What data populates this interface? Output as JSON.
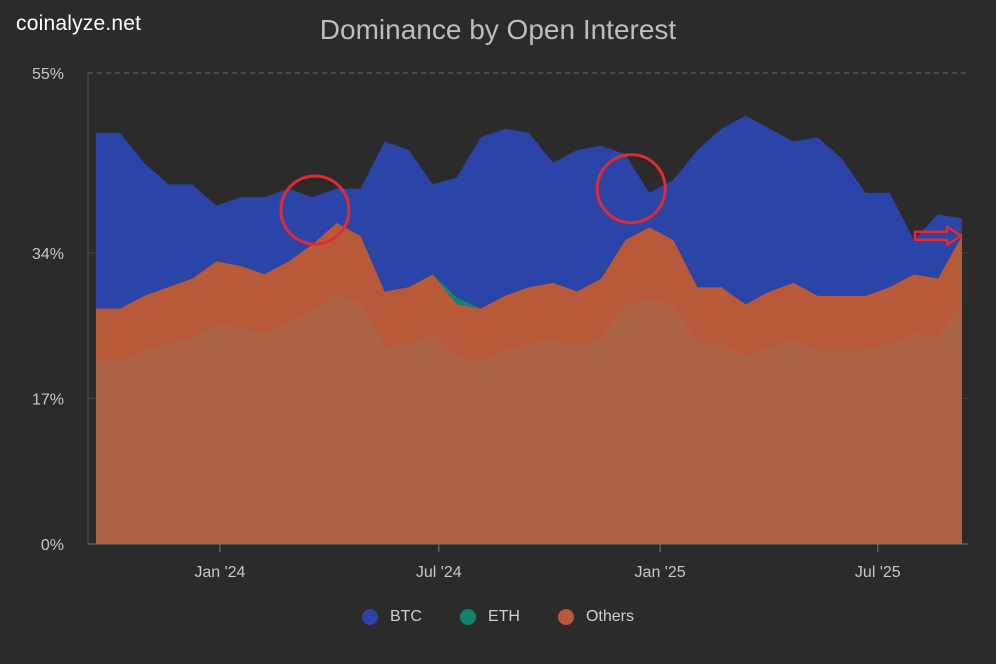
{
  "brand": "coinalyze.net",
  "chart_data": {
    "type": "area",
    "stacked": true,
    "title": "Dominance by Open Interest",
    "xlabel": "",
    "ylabel": "",
    "y_ticks": [
      "0%",
      "17%",
      "34%",
      "55%"
    ],
    "y_tick_values": [
      0,
      17,
      34,
      55
    ],
    "ylim": [
      0,
      55
    ],
    "x_ticks": [
      {
        "label": "Jan '24",
        "date": "2024-01-01"
      },
      {
        "label": "Jul '24",
        "date": "2024-07-01"
      },
      {
        "label": "Jan '25",
        "date": "2025-01-01"
      },
      {
        "label": "Jul '25",
        "date": "2025-07-01"
      }
    ],
    "x": [
      "2023-09-20",
      "2023-10-10",
      "2023-10-30",
      "2023-11-19",
      "2023-12-09",
      "2023-12-29",
      "2024-01-18",
      "2024-02-07",
      "2024-02-27",
      "2024-03-18",
      "2024-04-07",
      "2024-04-27",
      "2024-05-17",
      "2024-06-06",
      "2024-06-26",
      "2024-07-16",
      "2024-08-05",
      "2024-08-25",
      "2024-09-14",
      "2024-10-04",
      "2024-10-24",
      "2024-11-13",
      "2024-12-03",
      "2024-12-23",
      "2025-01-12",
      "2025-02-01",
      "2025-02-21",
      "2025-03-13",
      "2025-04-02",
      "2025-04-22",
      "2025-05-12",
      "2025-06-01",
      "2025-06-21",
      "2025-07-11",
      "2025-07-31",
      "2025-08-20",
      "2025-09-09"
    ],
    "series": [
      {
        "name": "Others",
        "color": "#b85a3a",
        "values": [
          27.5,
          27.5,
          29,
          30,
          31,
          33,
          32.5,
          31.5,
          33,
          35,
          37.5,
          36,
          29.5,
          30,
          31.5,
          28,
          27.5,
          29,
          30,
          30.5,
          29.5,
          31,
          35.5,
          37,
          35.5,
          30,
          30,
          28,
          29.5,
          30.5,
          29,
          29,
          29,
          30,
          31.5,
          31,
          36
        ]
      },
      {
        "name": "ETH",
        "color": "#15826f",
        "values": [
          0,
          0,
          0,
          0,
          0,
          0,
          0,
          0,
          0,
          0,
          0,
          0,
          0,
          0,
          0,
          0.8,
          0,
          0,
          0,
          0,
          0,
          0,
          0,
          0,
          0,
          0,
          0,
          0,
          0,
          0,
          0,
          0,
          0,
          0,
          0,
          0,
          0
        ]
      },
      {
        "name": "BTC",
        "color": "#2b44a8",
        "values": [
          20.5,
          20.5,
          15.5,
          12,
          11,
          6.5,
          8,
          9,
          8.5,
          5.5,
          4,
          5.5,
          17.5,
          16,
          10.5,
          14,
          20,
          19.5,
          18,
          14,
          16.5,
          15.5,
          10,
          4,
          7,
          16,
          18.5,
          22,
          19,
          16.5,
          18.5,
          16,
          12,
          11,
          4,
          7.5,
          2
        ]
      }
    ],
    "annotations": [
      {
        "type": "circle",
        "color": "#e02b33",
        "at": "2024-03-20",
        "near_value": 39
      },
      {
        "type": "circle",
        "color": "#e02b33",
        "at": "2024-12-08",
        "near_value": 41.5
      },
      {
        "type": "arrow",
        "color": "#e02b33",
        "at": "2025-09-09",
        "near_value": 36
      }
    ],
    "grid": {
      "horizontal": true,
      "dashed_top": true
    },
    "legend": {
      "position": "bottom-center"
    }
  }
}
